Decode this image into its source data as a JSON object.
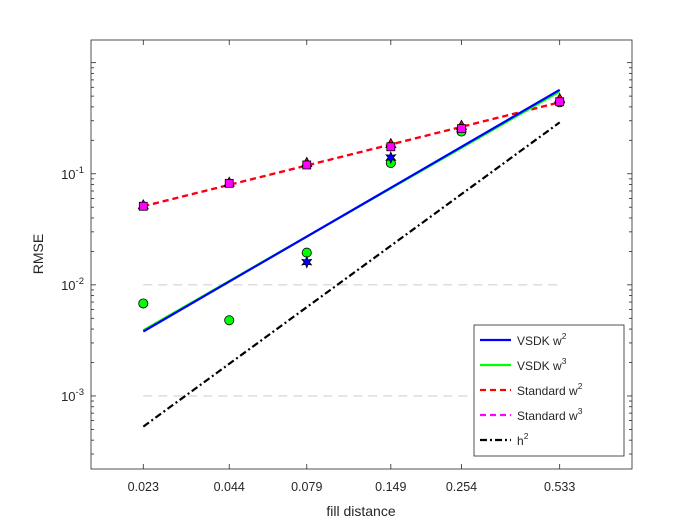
{
  "chart_data": {
    "type": "line",
    "xlabel": "fill distance",
    "ylabel": "RMSE",
    "x_scale": "log",
    "y_scale": "log",
    "x_ticks": [
      {
        "value": 0.023,
        "label": "0.023"
      },
      {
        "value": 0.044,
        "label": "0.044"
      },
      {
        "value": 0.079,
        "label": "0.079"
      },
      {
        "value": 0.149,
        "label": "0.149"
      },
      {
        "value": 0.254,
        "label": "0.254"
      },
      {
        "value": 0.533,
        "label": "0.533"
      }
    ],
    "y_ticks": [
      {
        "value": 0.001,
        "base": "10",
        "exp": "-3"
      },
      {
        "value": 0.01,
        "base": "10",
        "exp": "-2"
      },
      {
        "value": 0.1,
        "base": "10",
        "exp": "-1"
      }
    ],
    "xlim": [
      0.0155,
      0.92
    ],
    "ylim": [
      0.00022,
      1.6
    ],
    "reference_lines": [
      {
        "y": 0.01,
        "color": "#d9d9d9"
      },
      {
        "y": 0.001,
        "color": "#d9d9d9"
      }
    ],
    "series": [
      {
        "name": "VSDK w",
        "sup": "2",
        "color": "#0000ff",
        "style": "solid",
        "x": [
          0.023,
          0.533
        ],
        "y": [
          0.0038,
          0.57
        ]
      },
      {
        "name": "VSDK w",
        "sup": "3",
        "color": "#00ff00",
        "style": "solid",
        "x": [
          0.023,
          0.533
        ],
        "y": [
          0.0039,
          0.55
        ]
      },
      {
        "name": "Standard w",
        "sup": "2",
        "color": "#ff0000",
        "style": "dashed",
        "x": [
          0.023,
          0.533
        ],
        "y": [
          0.051,
          0.44
        ]
      },
      {
        "name": "Standard w",
        "sup": "3",
        "color": "#ff00ff",
        "style": "dashed",
        "x": [
          0.023,
          0.533
        ],
        "y": [
          0.051,
          0.44
        ]
      },
      {
        "name": "h",
        "sup": "2",
        "color": "#000000",
        "style": "dashdot",
        "x": [
          0.023,
          0.533
        ],
        "y": [
          0.00053,
          0.29
        ]
      }
    ],
    "markers": [
      {
        "shape": "circle",
        "fill": "#00ff00",
        "stroke": "#000000",
        "x": [
          0.023,
          0.044,
          0.079,
          0.149,
          0.254,
          0.533
        ],
        "y": [
          0.0068,
          0.0048,
          0.0195,
          0.125,
          0.24,
          0.44
        ]
      },
      {
        "shape": "star",
        "fill": "#0000ff",
        "stroke": "#000000",
        "x": [
          0.079,
          0.149
        ],
        "y": [
          0.016,
          0.14
        ]
      },
      {
        "shape": "triangle",
        "fill": "#ff0000",
        "stroke": "#000000",
        "x": [
          0.023,
          0.044,
          0.079,
          0.149,
          0.254,
          0.533
        ],
        "y": [
          0.052,
          0.083,
          0.125,
          0.185,
          0.27,
          0.47
        ]
      },
      {
        "shape": "square",
        "fill": "#ff00ff",
        "stroke": "#000000",
        "x": [
          0.023,
          0.044,
          0.079,
          0.149,
          0.254,
          0.533
        ],
        "y": [
          0.051,
          0.082,
          0.12,
          0.175,
          0.255,
          0.445
        ]
      }
    ],
    "legend": {
      "placement": "bottom-right"
    },
    "grid": false
  }
}
